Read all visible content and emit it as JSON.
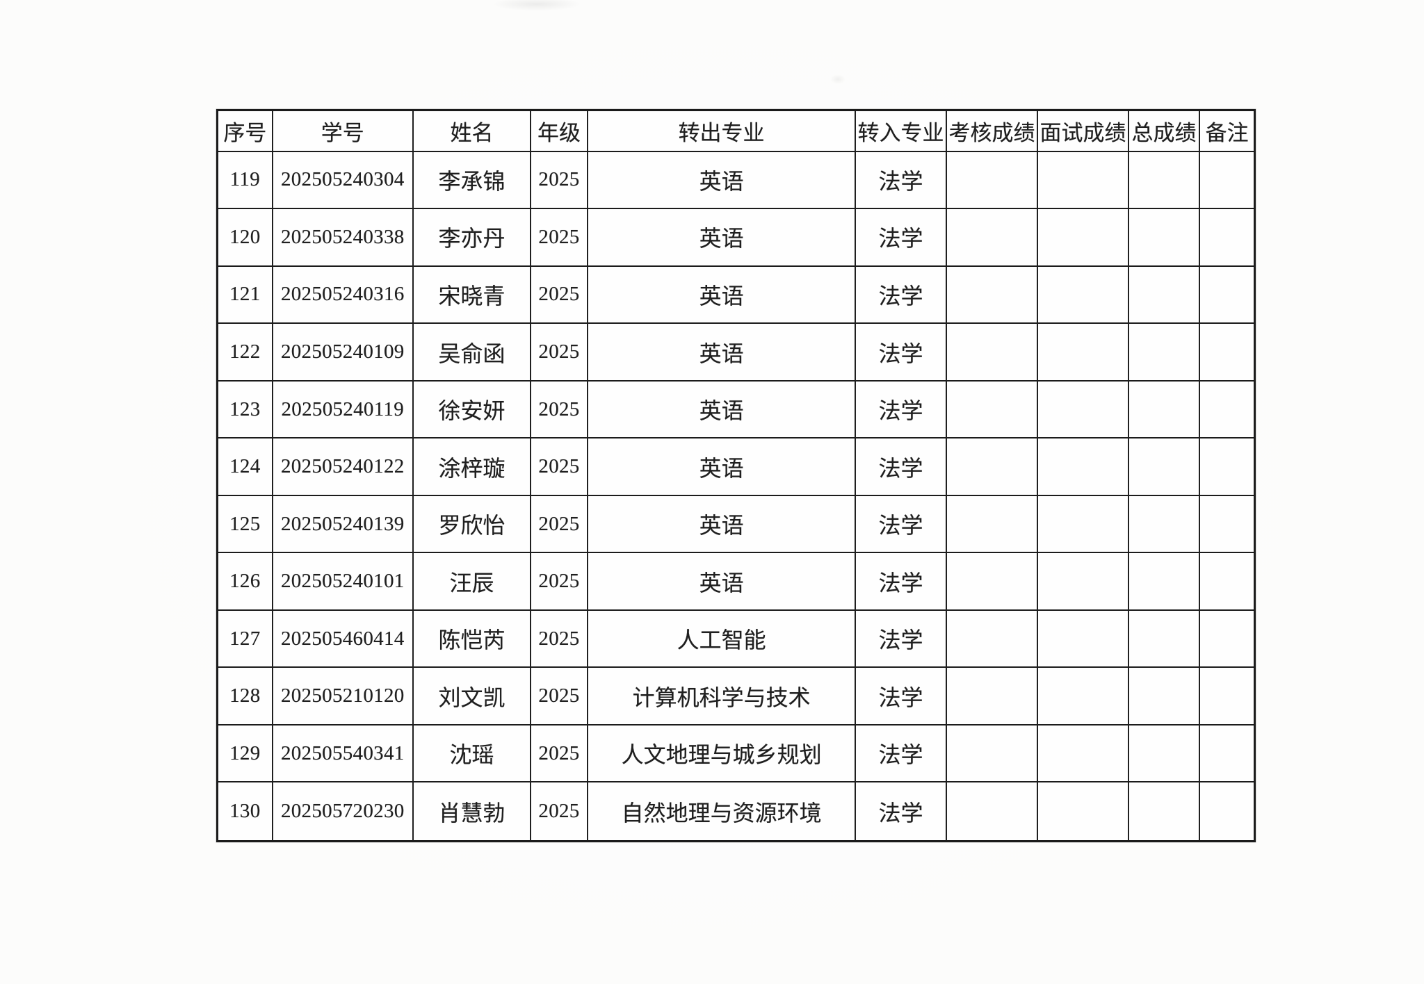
{
  "document": {
    "kind": "scanned-table",
    "colors": {
      "paper": "#fdfdfc",
      "ink": "#1f1f1f",
      "grid_line": "#1b1b1b"
    },
    "table": {
      "columns": [
        "序号",
        "学号",
        "姓名",
        "年级",
        "转出专业",
        "转入专业",
        "考核成绩",
        "面试成绩",
        "总成绩",
        "备注"
      ],
      "rows": [
        [
          "119",
          "202505240304",
          "李承锦",
          "2025",
          "英语",
          "法学",
          "",
          "",
          "",
          ""
        ],
        [
          "120",
          "202505240338",
          "李亦丹",
          "2025",
          "英语",
          "法学",
          "",
          "",
          "",
          ""
        ],
        [
          "121",
          "202505240316",
          "宋晓青",
          "2025",
          "英语",
          "法学",
          "",
          "",
          "",
          ""
        ],
        [
          "122",
          "202505240109",
          "吴俞函",
          "2025",
          "英语",
          "法学",
          "",
          "",
          "",
          ""
        ],
        [
          "123",
          "202505240119",
          "徐安妍",
          "2025",
          "英语",
          "法学",
          "",
          "",
          "",
          ""
        ],
        [
          "124",
          "202505240122",
          "涂梓璇",
          "2025",
          "英语",
          "法学",
          "",
          "",
          "",
          ""
        ],
        [
          "125",
          "202505240139",
          "罗欣怡",
          "2025",
          "英语",
          "法学",
          "",
          "",
          "",
          ""
        ],
        [
          "126",
          "202505240101",
          "汪辰",
          "2025",
          "英语",
          "法学",
          "",
          "",
          "",
          ""
        ],
        [
          "127",
          "202505460414",
          "陈恺芮",
          "2025",
          "人工智能",
          "法学",
          "",
          "",
          "",
          ""
        ],
        [
          "128",
          "202505210120",
          "刘文凯",
          "2025",
          "计算机科学与技术",
          "法学",
          "",
          "",
          "",
          ""
        ],
        [
          "129",
          "202505540341",
          "沈瑶",
          "2025",
          "人文地理与城乡规划",
          "法学",
          "",
          "",
          "",
          ""
        ],
        [
          "130",
          "202505720230",
          "肖慧勃",
          "2025",
          "自然地理与资源环境",
          "法学",
          "",
          "",
          "",
          ""
        ]
      ]
    }
  }
}
